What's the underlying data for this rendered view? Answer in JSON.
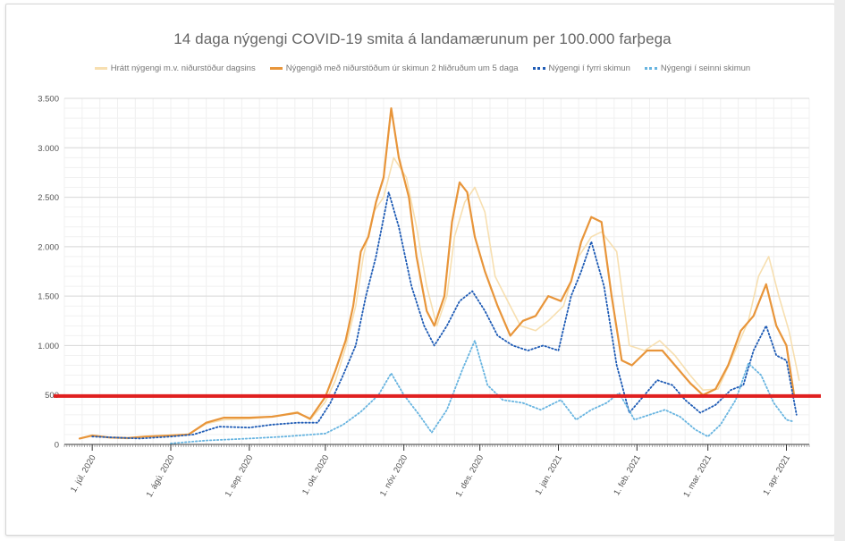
{
  "chart_data": {
    "type": "line",
    "title": "14 daga nýgengi COVID-19 smita á landamærunum per 100.000 farþega",
    "xlabel": "",
    "ylabel": "",
    "ylim": [
      0,
      3500
    ],
    "yticks": [
      0,
      500,
      1000,
      1500,
      2000,
      2500,
      3000,
      3500
    ],
    "ytick_labels": [
      "0",
      "500",
      "1.000",
      "1.500",
      "2.000",
      "2.500",
      "3.000",
      "3.500"
    ],
    "xticks": [
      "2020-07-01",
      "2020-08-01",
      "2020-09-01",
      "2020-10-01",
      "2020-11-01",
      "2020-12-01",
      "2021-01-01",
      "2021-02-01",
      "2021-03-01",
      "2021-04-01"
    ],
    "xtick_labels": [
      "1. júl. 2020",
      "1. ágú. 2020",
      "1. sep. 2020",
      "1. okt. 2020",
      "1. nóv. 2020",
      "1. des. 2020",
      "1. jan. 2021",
      "1. feb. 2021",
      "1. mar. 2021",
      "1. apr. 2021"
    ],
    "xlim": [
      "2020-06-20",
      "2021-04-10"
    ],
    "grid": true,
    "legend_position": "top",
    "reference_line": {
      "y": 490,
      "color": "#e02020"
    },
    "series": [
      {
        "name": "Hrátt nýgengi m.v. niðurstöður dagsins",
        "style": "solid",
        "color": "#f7dfb0",
        "points": [
          [
            "2020-06-26",
            60
          ],
          [
            "2020-07-01",
            90
          ],
          [
            "2020-07-08",
            70
          ],
          [
            "2020-07-15",
            60
          ],
          [
            "2020-07-22",
            80
          ],
          [
            "2020-08-01",
            95
          ],
          [
            "2020-08-08",
            100
          ],
          [
            "2020-08-15",
            210
          ],
          [
            "2020-08-22",
            250
          ],
          [
            "2020-09-01",
            260
          ],
          [
            "2020-09-10",
            280
          ],
          [
            "2020-09-20",
            330
          ],
          [
            "2020-09-25",
            250
          ],
          [
            "2020-10-01",
            430
          ],
          [
            "2020-10-05",
            650
          ],
          [
            "2020-10-09",
            980
          ],
          [
            "2020-10-13",
            1400
          ],
          [
            "2020-10-16",
            1900
          ],
          [
            "2020-10-20",
            2350
          ],
          [
            "2020-10-24",
            2500
          ],
          [
            "2020-10-28",
            2900
          ],
          [
            "2020-11-02",
            2700
          ],
          [
            "2020-11-06",
            2200
          ],
          [
            "2020-11-10",
            1600
          ],
          [
            "2020-11-14",
            1200
          ],
          [
            "2020-11-18",
            1500
          ],
          [
            "2020-11-21",
            2100
          ],
          [
            "2020-11-25",
            2450
          ],
          [
            "2020-11-29",
            2600
          ],
          [
            "2020-12-03",
            2350
          ],
          [
            "2020-12-07",
            1700
          ],
          [
            "2020-12-12",
            1450
          ],
          [
            "2020-12-17",
            1200
          ],
          [
            "2020-12-23",
            1150
          ],
          [
            "2020-12-28",
            1250
          ],
          [
            "2021-01-03",
            1400
          ],
          [
            "2021-01-09",
            1900
          ],
          [
            "2021-01-14",
            2100
          ],
          [
            "2021-01-18",
            2150
          ],
          [
            "2021-01-24",
            1950
          ],
          [
            "2021-01-29",
            1000
          ],
          [
            "2021-02-04",
            950
          ],
          [
            "2021-02-10",
            1050
          ],
          [
            "2021-02-16",
            900
          ],
          [
            "2021-02-22",
            700
          ],
          [
            "2021-02-27",
            550
          ],
          [
            "2021-03-05",
            560
          ],
          [
            "2021-03-11",
            900
          ],
          [
            "2021-03-17",
            1250
          ],
          [
            "2021-03-21",
            1700
          ],
          [
            "2021-03-25",
            1900
          ],
          [
            "2021-03-29",
            1500
          ],
          [
            "2021-04-02",
            1150
          ],
          [
            "2021-04-06",
            650
          ]
        ]
      },
      {
        "name": "Nýgengið með niðurstöðum úr skimun 2 hliðruðum um 5 daga",
        "style": "solid",
        "color": "#e8953a",
        "points": [
          [
            "2020-06-26",
            60
          ],
          [
            "2020-07-01",
            90
          ],
          [
            "2020-07-08",
            70
          ],
          [
            "2020-07-15",
            65
          ],
          [
            "2020-07-22",
            80
          ],
          [
            "2020-08-01",
            90
          ],
          [
            "2020-08-08",
            100
          ],
          [
            "2020-08-15",
            220
          ],
          [
            "2020-08-22",
            270
          ],
          [
            "2020-09-01",
            270
          ],
          [
            "2020-09-10",
            280
          ],
          [
            "2020-09-20",
            320
          ],
          [
            "2020-09-25",
            260
          ],
          [
            "2020-10-01",
            480
          ],
          [
            "2020-10-05",
            750
          ],
          [
            "2020-10-09",
            1050
          ],
          [
            "2020-10-12",
            1400
          ],
          [
            "2020-10-15",
            1950
          ],
          [
            "2020-10-18",
            2100
          ],
          [
            "2020-10-21",
            2450
          ],
          [
            "2020-10-24",
            2700
          ],
          [
            "2020-10-27",
            3400
          ],
          [
            "2020-10-30",
            2900
          ],
          [
            "2020-11-03",
            2500
          ],
          [
            "2020-11-06",
            1900
          ],
          [
            "2020-11-10",
            1350
          ],
          [
            "2020-11-13",
            1200
          ],
          [
            "2020-11-17",
            1500
          ],
          [
            "2020-11-20",
            2250
          ],
          [
            "2020-11-23",
            2650
          ],
          [
            "2020-11-26",
            2550
          ],
          [
            "2020-11-29",
            2100
          ],
          [
            "2020-12-03",
            1750
          ],
          [
            "2020-12-08",
            1400
          ],
          [
            "2020-12-13",
            1100
          ],
          [
            "2020-12-18",
            1250
          ],
          [
            "2020-12-23",
            1300
          ],
          [
            "2020-12-28",
            1500
          ],
          [
            "2021-01-02",
            1450
          ],
          [
            "2021-01-06",
            1650
          ],
          [
            "2021-01-10",
            2050
          ],
          [
            "2021-01-14",
            2300
          ],
          [
            "2021-01-18",
            2250
          ],
          [
            "2021-01-22",
            1500
          ],
          [
            "2021-01-26",
            850
          ],
          [
            "2021-01-30",
            800
          ],
          [
            "2021-02-05",
            950
          ],
          [
            "2021-02-11",
            950
          ],
          [
            "2021-02-16",
            800
          ],
          [
            "2021-02-22",
            620
          ],
          [
            "2021-02-27",
            500
          ],
          [
            "2021-03-04",
            560
          ],
          [
            "2021-03-09",
            800
          ],
          [
            "2021-03-14",
            1150
          ],
          [
            "2021-03-19",
            1300
          ],
          [
            "2021-03-24",
            1620
          ],
          [
            "2021-03-28",
            1200
          ],
          [
            "2021-04-01",
            1000
          ],
          [
            "2021-04-04",
            500
          ]
        ]
      },
      {
        "name": "Nýgengi í fyrri skimun",
        "style": "dotted",
        "color": "#1e5bb5",
        "points": [
          [
            "2020-07-01",
            80
          ],
          [
            "2020-07-10",
            70
          ],
          [
            "2020-07-20",
            60
          ],
          [
            "2020-08-01",
            80
          ],
          [
            "2020-08-10",
            100
          ],
          [
            "2020-08-20",
            180
          ],
          [
            "2020-09-01",
            170
          ],
          [
            "2020-09-10",
            200
          ],
          [
            "2020-09-20",
            220
          ],
          [
            "2020-09-28",
            220
          ],
          [
            "2020-10-03",
            420
          ],
          [
            "2020-10-08",
            700
          ],
          [
            "2020-10-13",
            1000
          ],
          [
            "2020-10-17",
            1500
          ],
          [
            "2020-10-21",
            1900
          ],
          [
            "2020-10-26",
            2550
          ],
          [
            "2020-10-30",
            2200
          ],
          [
            "2020-11-04",
            1600
          ],
          [
            "2020-11-09",
            1200
          ],
          [
            "2020-11-13",
            1000
          ],
          [
            "2020-11-18",
            1200
          ],
          [
            "2020-11-23",
            1450
          ],
          [
            "2020-11-28",
            1550
          ],
          [
            "2020-12-03",
            1350
          ],
          [
            "2020-12-08",
            1100
          ],
          [
            "2020-12-14",
            1000
          ],
          [
            "2020-12-20",
            950
          ],
          [
            "2020-12-26",
            1000
          ],
          [
            "2021-01-01",
            950
          ],
          [
            "2021-01-06",
            1500
          ],
          [
            "2021-01-10",
            1750
          ],
          [
            "2021-01-14",
            2050
          ],
          [
            "2021-01-19",
            1600
          ],
          [
            "2021-01-24",
            800
          ],
          [
            "2021-01-29",
            320
          ],
          [
            "2021-02-04",
            500
          ],
          [
            "2021-02-09",
            650
          ],
          [
            "2021-02-15",
            600
          ],
          [
            "2021-02-20",
            450
          ],
          [
            "2021-02-26",
            320
          ],
          [
            "2021-03-04",
            400
          ],
          [
            "2021-03-10",
            550
          ],
          [
            "2021-03-15",
            600
          ],
          [
            "2021-03-19",
            950
          ],
          [
            "2021-03-24",
            1200
          ],
          [
            "2021-03-28",
            900
          ],
          [
            "2021-04-01",
            850
          ],
          [
            "2021-04-05",
            300
          ]
        ]
      },
      {
        "name": "Nýgengi í seinni skimun",
        "style": "dotted",
        "color": "#67b4e0",
        "points": [
          [
            "2020-08-01",
            10
          ],
          [
            "2020-08-15",
            40
          ],
          [
            "2020-09-01",
            60
          ],
          [
            "2020-09-15",
            80
          ],
          [
            "2020-10-01",
            110
          ],
          [
            "2020-10-08",
            200
          ],
          [
            "2020-10-15",
            330
          ],
          [
            "2020-10-22",
            500
          ],
          [
            "2020-10-27",
            720
          ],
          [
            "2020-11-01",
            500
          ],
          [
            "2020-11-07",
            300
          ],
          [
            "2020-11-12",
            120
          ],
          [
            "2020-11-18",
            350
          ],
          [
            "2020-11-24",
            750
          ],
          [
            "2020-11-29",
            1050
          ],
          [
            "2020-12-04",
            600
          ],
          [
            "2020-12-10",
            450
          ],
          [
            "2020-12-18",
            420
          ],
          [
            "2020-12-25",
            350
          ],
          [
            "2021-01-02",
            450
          ],
          [
            "2021-01-08",
            250
          ],
          [
            "2021-01-14",
            350
          ],
          [
            "2021-01-20",
            420
          ],
          [
            "2021-01-25",
            520
          ],
          [
            "2021-01-31",
            250
          ],
          [
            "2021-02-06",
            300
          ],
          [
            "2021-02-12",
            350
          ],
          [
            "2021-02-18",
            280
          ],
          [
            "2021-02-24",
            150
          ],
          [
            "2021-03-01",
            80
          ],
          [
            "2021-03-06",
            200
          ],
          [
            "2021-03-12",
            450
          ],
          [
            "2021-03-17",
            820
          ],
          [
            "2021-03-22",
            700
          ],
          [
            "2021-03-27",
            420
          ],
          [
            "2021-04-01",
            250
          ],
          [
            "2021-04-04",
            230
          ]
        ]
      }
    ]
  }
}
